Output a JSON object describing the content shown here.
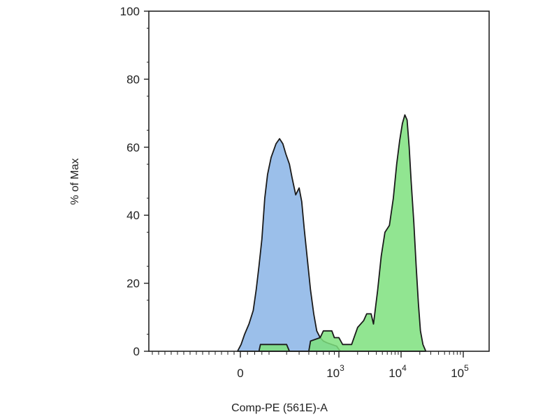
{
  "chart_data": {
    "type": "area",
    "title": "",
    "xlabel": "Comp-PE (561E)-A",
    "ylabel": "% of Max",
    "x_scale": "biexponential",
    "x_tick_labels": [
      {
        "value": 0,
        "base": "0",
        "exp": ""
      },
      {
        "value": 1000,
        "base": "10",
        "exp": "3"
      },
      {
        "value": 10000,
        "base": "10",
        "exp": "4"
      },
      {
        "value": 100000,
        "base": "10",
        "exp": "5"
      }
    ],
    "y_ticks": [
      0,
      20,
      40,
      60,
      80,
      100
    ],
    "ylim": [
      0,
      100
    ],
    "grid": false,
    "legend": "none",
    "series": [
      {
        "color": "#8ab4e6",
        "points": [
          [
            -20,
            0
          ],
          [
            5,
            2
          ],
          [
            30,
            5
          ],
          [
            60,
            8
          ],
          [
            90,
            12
          ],
          [
            110,
            18
          ],
          [
            130,
            25
          ],
          [
            150,
            33
          ],
          [
            170,
            45
          ],
          [
            190,
            52
          ],
          [
            210,
            57
          ],
          [
            235,
            61
          ],
          [
            255,
            62.5
          ],
          [
            275,
            61
          ],
          [
            295,
            58
          ],
          [
            320,
            55
          ],
          [
            340,
            51
          ],
          [
            370,
            46
          ],
          [
            400,
            48
          ],
          [
            425,
            44
          ],
          [
            450,
            36
          ],
          [
            480,
            28
          ],
          [
            520,
            18
          ],
          [
            560,
            11
          ],
          [
            600,
            6
          ],
          [
            650,
            4
          ],
          [
            700,
            3
          ],
          [
            760,
            2.5
          ],
          [
            850,
            2
          ],
          [
            950,
            1.5
          ],
          [
            1050,
            0
          ]
        ]
      },
      {
        "color": "#7ee07e",
        "points": [
          [
            130,
            0
          ],
          [
            140,
            2
          ],
          [
            300,
            2
          ],
          [
            320,
            0
          ],
          [
            500,
            0
          ],
          [
            520,
            3
          ],
          [
            650,
            4
          ],
          [
            700,
            6
          ],
          [
            850,
            6
          ],
          [
            900,
            4
          ],
          [
            1000,
            4
          ],
          [
            1150,
            2
          ],
          [
            1600,
            2
          ],
          [
            2000,
            7
          ],
          [
            2500,
            9
          ],
          [
            2800,
            11
          ],
          [
            3300,
            11
          ],
          [
            3600,
            8
          ],
          [
            4200,
            18
          ],
          [
            4800,
            28
          ],
          [
            5500,
            35
          ],
          [
            6500,
            37
          ],
          [
            7500,
            45
          ],
          [
            8500,
            55
          ],
          [
            9500,
            62
          ],
          [
            10500,
            67
          ],
          [
            11500,
            69.5
          ],
          [
            12500,
            68
          ],
          [
            13500,
            60
          ],
          [
            14500,
            50
          ],
          [
            16000,
            38
          ],
          [
            17500,
            25
          ],
          [
            19000,
            14
          ],
          [
            20500,
            6
          ],
          [
            22500,
            2
          ],
          [
            25000,
            0
          ]
        ]
      }
    ]
  }
}
